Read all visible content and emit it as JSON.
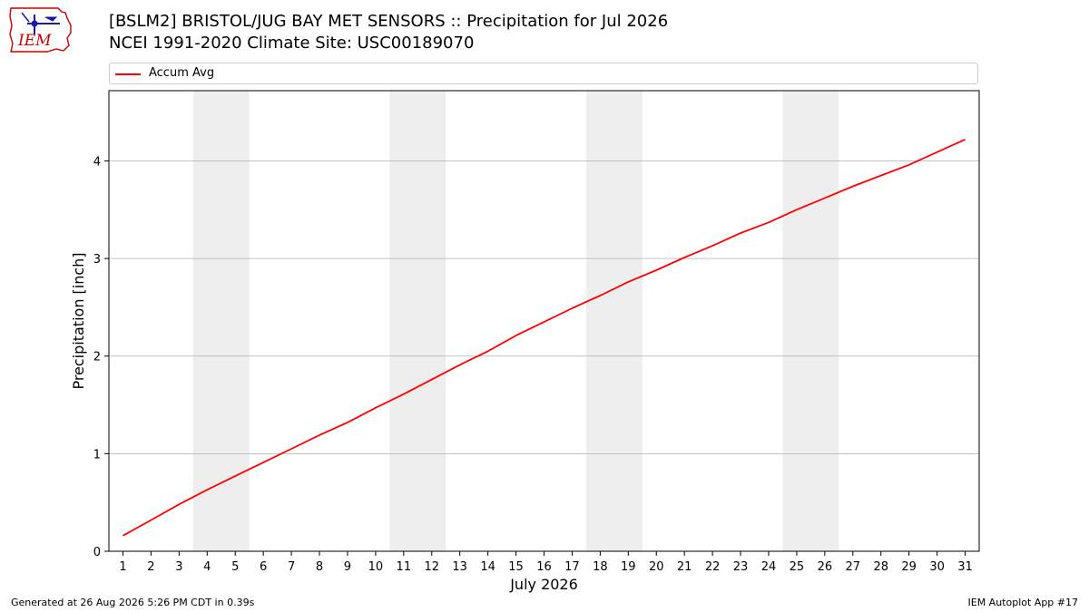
{
  "header": {
    "title_line1": "[BSLM2] BRISTOL/JUG BAY MET SENSORS :: Precipitation for Jul 2026",
    "title_line2": "NCEI 1991-2020 Climate Site: USC00189070"
  },
  "logo": {
    "text": "IEM",
    "color": "#cc0000",
    "icon_color": "#1a1aa6"
  },
  "footer": {
    "left": "Generated at 26 Aug 2026 5:26 PM CDT in 0.39s",
    "right": "IEM Autoplot App #17"
  },
  "chart_data": {
    "type": "line",
    "title": "[BSLM2] BRISTOL/JUG BAY MET SENSORS :: Precipitation for Jul 2026",
    "subtitle": "NCEI 1991-2020 Climate Site: USC00189070",
    "xlabel": "July 2026",
    "ylabel": "Precipitation [inch]",
    "xlim": [
      0.5,
      31.5
    ],
    "ylim": [
      0,
      4.72
    ],
    "x_ticks": [
      1,
      2,
      3,
      4,
      5,
      6,
      7,
      8,
      9,
      10,
      11,
      12,
      13,
      14,
      15,
      16,
      17,
      18,
      19,
      20,
      21,
      22,
      23,
      24,
      25,
      26,
      27,
      28,
      29,
      30,
      31
    ],
    "y_ticks": [
      0,
      1,
      2,
      3,
      4
    ],
    "grid": "horizontal",
    "legend": "top",
    "weekend_shading": [
      [
        3.5,
        5.5
      ],
      [
        10.5,
        12.5
      ],
      [
        17.5,
        19.5
      ],
      [
        24.5,
        26.5
      ]
    ],
    "shade_color": "#eeeeee",
    "series": [
      {
        "name": "Accum Avg",
        "color": "#ff0000",
        "x": [
          1,
          2,
          3,
          4,
          5,
          6,
          7,
          8,
          9,
          10,
          11,
          12,
          13,
          14,
          15,
          16,
          17,
          18,
          19,
          20,
          21,
          22,
          23,
          24,
          25,
          26,
          27,
          28,
          29,
          30,
          31
        ],
        "values": [
          0.16,
          0.32,
          0.48,
          0.63,
          0.77,
          0.91,
          1.05,
          1.19,
          1.32,
          1.47,
          1.61,
          1.76,
          1.91,
          2.05,
          2.21,
          2.35,
          2.49,
          2.62,
          2.76,
          2.88,
          3.01,
          3.13,
          3.26,
          3.37,
          3.5,
          3.62,
          3.74,
          3.85,
          3.96,
          4.09,
          4.22
        ]
      }
    ]
  }
}
